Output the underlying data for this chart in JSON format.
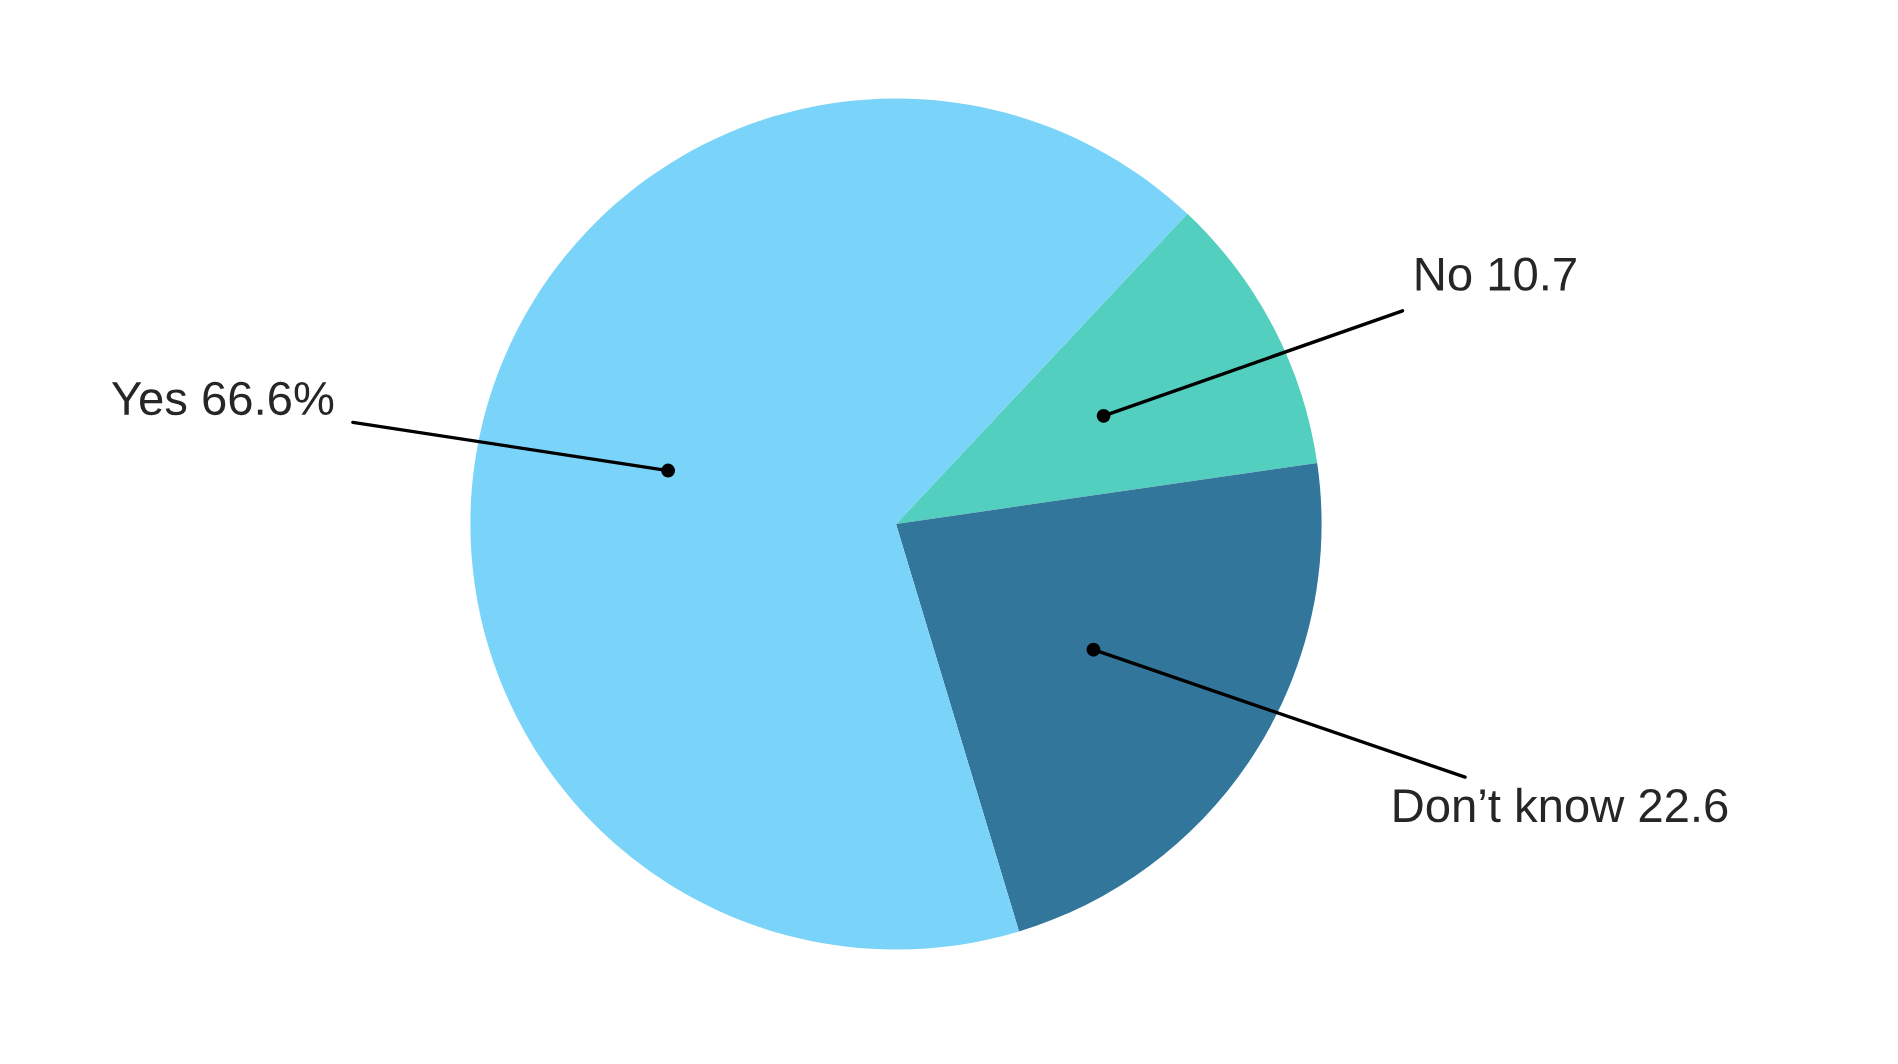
{
  "chart_data": {
    "type": "pie",
    "categories": [
      "No",
      "Don’t know",
      "Yes"
    ],
    "values": [
      10.7,
      22.6,
      66.6
    ],
    "value_labels": [
      "10.7",
      "22.6",
      "66.6%"
    ],
    "colors": [
      "#52cfbe",
      "#33769b",
      "#7ad3f8"
    ]
  }
}
